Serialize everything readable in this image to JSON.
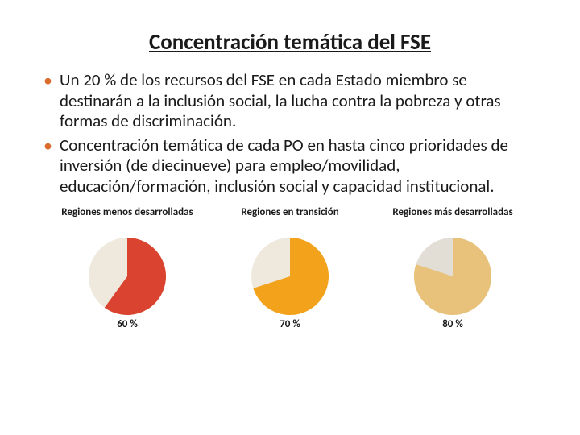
{
  "title": "Concentración temática del FSE",
  "title_color": "#1a1a1a",
  "bullet_marker_color": "#d96c2c",
  "bullets": [
    "Un 20 % de los recursos del FSE en cada Estado miembro se destinarán a la inclusión social, la lucha contra la pobreza y otras formas de discriminación.",
    "Concentración temática de cada PO en hasta cinco prioridades de inversión (de diecinueve) para empleo/movilidad, educación/formación, inclusión social y capacidad institucional."
  ],
  "charts": [
    {
      "label": "Regiones menos desarrolladas",
      "percent": 60,
      "percent_label": "60 %",
      "slice_color": "#d9432f",
      "remainder_color": "#efe9dd"
    },
    {
      "label": "Regiones en transición",
      "percent": 70,
      "percent_label": "70 %",
      "slice_color": "#f2a31b",
      "remainder_color": "#efe9dd"
    },
    {
      "label": "Regiones más desarrolladas",
      "percent": 80,
      "percent_label": "80 %",
      "slice_color": "#e8c27a",
      "remainder_color": "#e2ded5"
    }
  ],
  "pie": {
    "radius": 48,
    "start_angle_deg": -90
  },
  "background_color": "#ffffff"
}
